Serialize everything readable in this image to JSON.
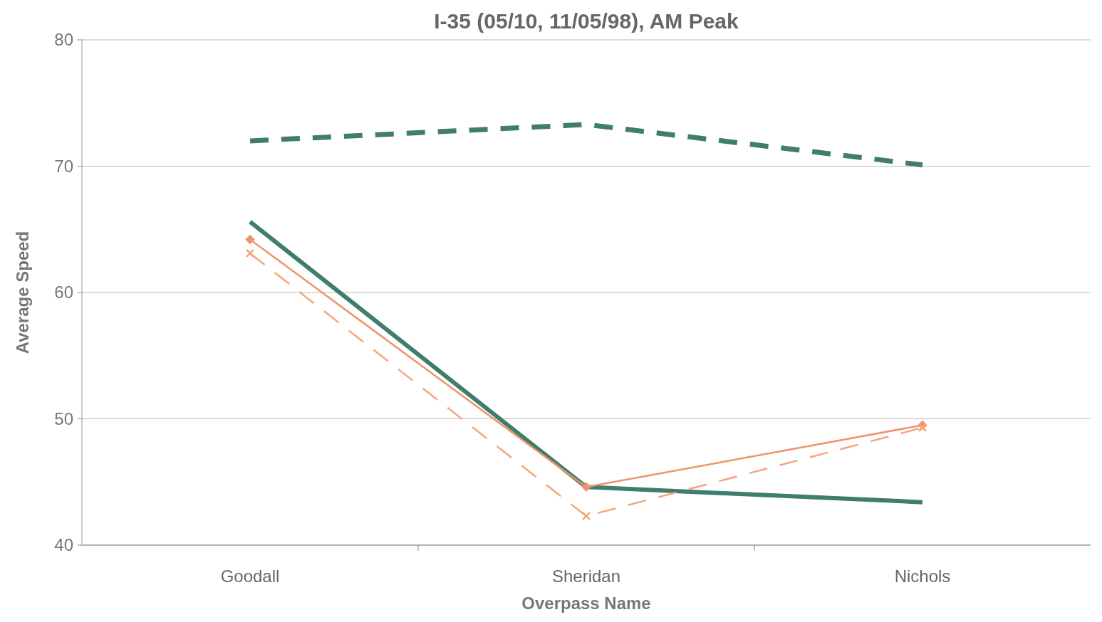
{
  "chart_data": {
    "type": "line",
    "title": "I-35 (05/10, 11/05/98), AM Peak",
    "xlabel": "Overpass Name",
    "ylabel": "Average Speed",
    "categories": [
      "Goodall",
      "Sheridan",
      "Nichols"
    ],
    "ylim": [
      40,
      80
    ],
    "yticks": [
      40,
      50,
      60,
      70,
      80
    ],
    "grid": "y",
    "series": [
      {
        "color": "#3f7d6c",
        "values": [
          72.0,
          73.3,
          70.1
        ],
        "line_style": "dashed",
        "marker": "none"
      },
      {
        "color": "#3f7d6c",
        "values": [
          65.6,
          44.6,
          43.4
        ],
        "line_style": "solid",
        "marker": "none"
      },
      {
        "color": "#f0936a",
        "values": [
          64.2,
          44.6,
          49.5
        ],
        "line_style": "solid",
        "marker": "diamond"
      },
      {
        "color": "#f5a47c",
        "values": [
          63.1,
          42.3,
          49.3
        ],
        "line_style": "dashed",
        "marker": "cross"
      }
    ]
  }
}
